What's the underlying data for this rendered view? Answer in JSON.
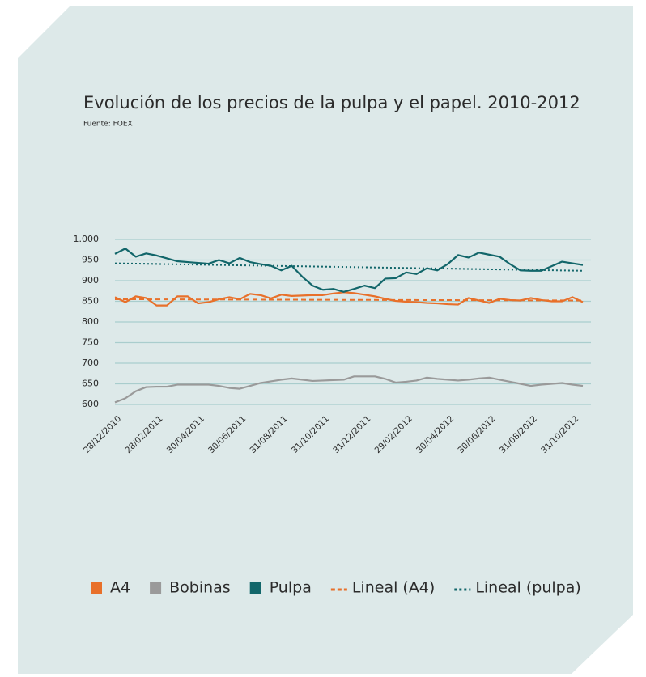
{
  "chart_data": {
    "type": "line",
    "title": "Evolución de los precios de la pulpa y el papel. 2010-2012",
    "subtitle": "Fuente: FOEX",
    "categories": [
      "28/12/2010",
      null,
      null,
      null,
      "28/02/2011",
      null,
      null,
      null,
      "30/04/2011",
      null,
      null,
      null,
      "30/06/2011",
      null,
      null,
      null,
      "31/08/2011",
      null,
      null,
      null,
      "31/10/2011",
      null,
      null,
      null,
      "31/12/2011",
      null,
      null,
      null,
      "29/02/2012",
      null,
      null,
      null,
      "30/04/2012",
      null,
      null,
      null,
      "30/06/2012",
      null,
      null,
      null,
      "31/08/2012",
      null,
      null,
      null,
      "31/10/2012",
      null
    ],
    "series": [
      {
        "name": "A4",
        "color": "#e8702a",
        "values": [
          860,
          848,
          862,
          858,
          840,
          840,
          862,
          862,
          845,
          848,
          855,
          860,
          855,
          868,
          865,
          857,
          866,
          863,
          864,
          865,
          865,
          869,
          872,
          870,
          866,
          862,
          856,
          851,
          849,
          848,
          846,
          845,
          843,
          842,
          858,
          852,
          846,
          856,
          853,
          852,
          858,
          853,
          850,
          850,
          860,
          848
        ]
      },
      {
        "name": "Bobinas",
        "color": "#9a9a9a",
        "values": [
          605,
          615,
          632,
          642,
          643,
          643,
          648,
          648,
          648,
          648,
          645,
          640,
          638,
          645,
          652,
          656,
          660,
          663,
          660,
          657,
          658,
          659,
          660,
          668,
          668,
          668,
          662,
          653,
          655,
          658,
          665,
          662,
          660,
          658,
          660,
          663,
          665,
          660,
          655,
          650,
          645,
          648,
          650,
          652,
          648,
          645
        ]
      },
      {
        "name": "Pulpa",
        "color": "#12666a",
        "values": [
          965,
          978,
          958,
          966,
          961,
          954,
          947,
          945,
          943,
          941,
          950,
          942,
          955,
          945,
          940,
          936,
          925,
          936,
          910,
          888,
          878,
          880,
          873,
          880,
          888,
          882,
          905,
          906,
          920,
          916,
          930,
          925,
          940,
          962,
          956,
          968,
          963,
          958,
          940,
          925,
          924,
          924,
          935,
          946,
          942,
          938
        ]
      }
    ],
    "trendlines": [
      {
        "name": "Lineal (A4)",
        "color": "#e8702a",
        "style": "dashed",
        "values": [
          855,
          852
        ]
      },
      {
        "name": "Lineal (pulpa)",
        "color": "#12666a",
        "style": "dotted",
        "values": [
          942,
          924
        ]
      }
    ],
    "ylim": [
      600,
      1000
    ],
    "yticks": [
      600,
      650,
      700,
      750,
      800,
      850,
      900,
      950,
      {
        "value": 1000,
        "label": "1.000"
      }
    ],
    "grid": true,
    "legend": "bottom"
  }
}
